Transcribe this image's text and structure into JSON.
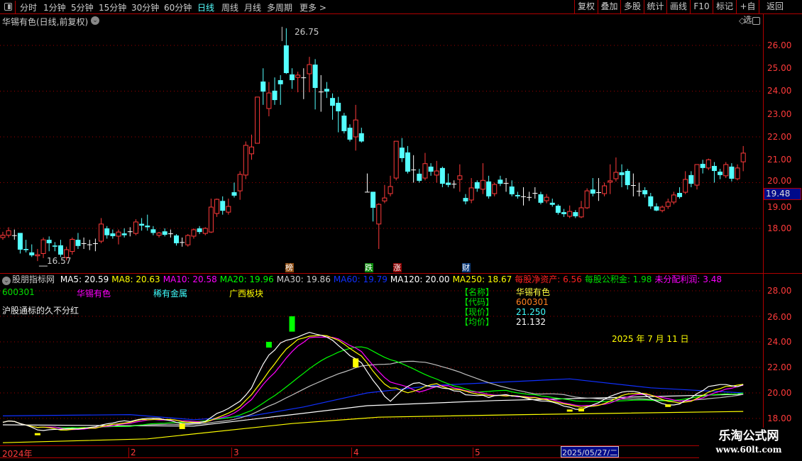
{
  "toolbar": {
    "periods": [
      "分时",
      "1分钟",
      "5分钟",
      "15分钟",
      "30分钟",
      "60分钟",
      "日线",
      "周线",
      "月线",
      "多周期",
      "更多 >"
    ],
    "active": "日线",
    "buttons": [
      "复权",
      "叠加",
      "多股",
      "统计",
      "画线",
      "F10",
      "标记",
      "+自选",
      "返回"
    ]
  },
  "main": {
    "title": "华锡有色(日线,前复权)",
    "high_label": "26.75",
    "low_label": "16.57",
    "current_price": "19.48",
    "price_ticks": [
      "26.00",
      "25.00",
      "24.00",
      "23.00",
      "22.00",
      "21.00",
      "20.00",
      "19.00",
      "18.00"
    ],
    "events": [
      {
        "text": "榜",
        "color": "#8b4a10"
      },
      {
        "text": "跌",
        "color": "#0a8a0a"
      },
      {
        "text": "涨",
        "color": "#8b0000"
      },
      {
        "text": "财",
        "color": "#0a3a7a"
      }
    ],
    "colors": {
      "up": "#ff3a3a",
      "down": "#54ffff",
      "flat": "#ffffff",
      "grid": "#a00000"
    }
  },
  "chart_data": {
    "type": "candlestick",
    "ohlc_order": [
      "open",
      "high",
      "low",
      "close"
    ],
    "ylim": [
      16.5,
      27
    ],
    "candles": [
      [
        17.6,
        17.85,
        17.5,
        17.7
      ],
      [
        17.7,
        18.05,
        17.6,
        17.9
      ],
      [
        17.7,
        17.95,
        17.5,
        17.7
      ],
      [
        17.8,
        17.8,
        16.9,
        17.07
      ],
      [
        17.1,
        17.5,
        16.95,
        17.05
      ],
      [
        16.95,
        17.3,
        16.75,
        16.82
      ],
      [
        16.8,
        17.1,
        16.57,
        16.85
      ],
      [
        16.9,
        17.6,
        16.7,
        17.5
      ],
      [
        17.5,
        17.65,
        17.0,
        17.35
      ],
      [
        17.25,
        17.4,
        17.0,
        17.2
      ],
      [
        17.26,
        17.5,
        16.75,
        16.85
      ],
      [
        16.73,
        17.2,
        16.6,
        17.07
      ],
      [
        16.99,
        17.6,
        16.85,
        17.52
      ],
      [
        17.5,
        17.8,
        17.1,
        17.23
      ],
      [
        17.35,
        17.6,
        17.1,
        17.35
      ],
      [
        17.3,
        17.5,
        17.05,
        17.3
      ],
      [
        17.35,
        17.55,
        17.0,
        17.35
      ],
      [
        17.44,
        18.45,
        17.35,
        18.19
      ],
      [
        18.0,
        18.1,
        17.55,
        17.7
      ],
      [
        17.78,
        17.95,
        17.55,
        17.66
      ],
      [
        17.66,
        17.95,
        17.3,
        17.84
      ],
      [
        17.78,
        18.0,
        17.6,
        17.7
      ],
      [
        17.87,
        18.05,
        17.65,
        17.87
      ],
      [
        17.78,
        18.4,
        17.7,
        18.28
      ],
      [
        18.2,
        18.45,
        17.9,
        18.12
      ],
      [
        18.12,
        18.6,
        17.9,
        18.05
      ],
      [
        17.96,
        18.1,
        17.7,
        17.8
      ],
      [
        17.7,
        17.85,
        17.6,
        17.8
      ],
      [
        17.87,
        18.0,
        17.65,
        17.72
      ],
      [
        17.78,
        17.95,
        17.6,
        17.78
      ],
      [
        17.69,
        17.75,
        17.25,
        17.35
      ],
      [
        17.4,
        17.6,
        17.2,
        17.4
      ],
      [
        17.28,
        17.75,
        17.2,
        17.69
      ],
      [
        17.66,
        18.0,
        17.55,
        17.94
      ],
      [
        18.0,
        18.1,
        17.75,
        17.84
      ],
      [
        17.78,
        18.05,
        17.7,
        18.0
      ],
      [
        17.84,
        19.3,
        17.8,
        18.93
      ],
      [
        18.65,
        19.3,
        18.5,
        19.27
      ],
      [
        19.2,
        19.4,
        18.6,
        18.77
      ],
      [
        18.71,
        19.3,
        18.6,
        18.96
      ],
      [
        19.58,
        20.0,
        19.35,
        19.43
      ],
      [
        19.64,
        20.5,
        19.25,
        20.36
      ],
      [
        20.33,
        21.8,
        20.15,
        21.63
      ],
      [
        21.26,
        22.1,
        21.0,
        21.56
      ],
      [
        21.72,
        23.74,
        21.72,
        23.74
      ],
      [
        24.42,
        25.0,
        23.4,
        23.98
      ],
      [
        23.24,
        24.4,
        22.9,
        23.92
      ],
      [
        24.02,
        24.6,
        23.4,
        23.61
      ],
      [
        24.48,
        24.7,
        23.4,
        24.3
      ],
      [
        26.0,
        26.75,
        24.75,
        24.79
      ],
      [
        24.73,
        25.0,
        24.1,
        24.48
      ],
      [
        24.6,
        24.85,
        23.95,
        24.7
      ],
      [
        24.6,
        25.0,
        23.65,
        24.6
      ],
      [
        24.76,
        25.5,
        23.95,
        25.16
      ],
      [
        25.16,
        25.4,
        23.2,
        24.14
      ],
      [
        23.98,
        24.7,
        23.1,
        23.98
      ],
      [
        24.1,
        24.4,
        23.7,
        23.98
      ],
      [
        23.7,
        23.9,
        22.75,
        23.36
      ],
      [
        23.49,
        23.75,
        22.2,
        23.12
      ],
      [
        22.93,
        23.05,
        22.15,
        22.25
      ],
      [
        22.4,
        22.55,
        21.8,
        21.88
      ],
      [
        22.0,
        23.4,
        21.4,
        22.74
      ],
      [
        22.16,
        22.4,
        21.75,
        21.8
      ],
      [
        19.6,
        20.4,
        19.6,
        19.6
      ],
      [
        19.6,
        19.6,
        18.3,
        18.9
      ],
      [
        18.19,
        19.1,
        17.1,
        19.05
      ],
      [
        19.2,
        19.9,
        19.1,
        19.33
      ],
      [
        19.52,
        20.3,
        19.4,
        19.83
      ],
      [
        20.2,
        21.81,
        20.1,
        21.81
      ],
      [
        21.53,
        21.95,
        20.9,
        21.07
      ],
      [
        21.32,
        21.6,
        20.4,
        20.48
      ],
      [
        20.57,
        21.2,
        20.0,
        20.57
      ],
      [
        20.39,
        20.6,
        20.0,
        20.08
      ],
      [
        20.2,
        21.3,
        20.1,
        20.83
      ],
      [
        20.7,
        20.85,
        20.3,
        20.48
      ],
      [
        20.33,
        20.95,
        20.0,
        20.51
      ],
      [
        20.64,
        20.7,
        19.8,
        19.95
      ],
      [
        20.0,
        20.4,
        19.8,
        19.9
      ],
      [
        19.95,
        20.1,
        19.75,
        19.95
      ],
      [
        20.14,
        20.8,
        19.6,
        20.3
      ],
      [
        19.33,
        19.5,
        19.05,
        19.18
      ],
      [
        19.24,
        20.2,
        19.1,
        19.77
      ],
      [
        20.02,
        20.1,
        19.6,
        19.74
      ],
      [
        19.71,
        20.85,
        19.5,
        20.1
      ],
      [
        20.05,
        20.3,
        19.3,
        19.4
      ],
      [
        19.52,
        20.0,
        19.4,
        19.92
      ],
      [
        20.13,
        20.3,
        19.85,
        19.95
      ],
      [
        19.98,
        20.2,
        19.6,
        19.98
      ],
      [
        19.83,
        20.1,
        19.4,
        19.49
      ],
      [
        19.46,
        19.6,
        19.3,
        19.4
      ],
      [
        19.4,
        19.8,
        19.0,
        19.4
      ],
      [
        19.37,
        19.6,
        19.2,
        19.37
      ],
      [
        19.55,
        19.8,
        19.3,
        19.55
      ],
      [
        19.49,
        19.6,
        19.05,
        19.12
      ],
      [
        19.21,
        19.5,
        19.1,
        19.36
      ],
      [
        19.12,
        19.3,
        18.95,
        19.03
      ],
      [
        18.99,
        19.05,
        18.6,
        18.68
      ],
      [
        18.71,
        18.85,
        18.5,
        18.62
      ],
      [
        18.53,
        19.0,
        18.45,
        18.74
      ],
      [
        18.71,
        18.8,
        18.45,
        18.53
      ],
      [
        18.5,
        19.2,
        18.45,
        18.9
      ],
      [
        18.9,
        19.75,
        18.85,
        19.64
      ],
      [
        19.7,
        20.2,
        19.4,
        19.52
      ],
      [
        19.58,
        20.2,
        19.2,
        19.58
      ],
      [
        19.52,
        20.0,
        19.4,
        19.86
      ],
      [
        20.02,
        20.8,
        19.5,
        20.08
      ],
      [
        20.17,
        21.1,
        20.05,
        20.45
      ],
      [
        20.45,
        20.8,
        19.8,
        20.33
      ],
      [
        20.51,
        20.6,
        19.7,
        19.89
      ],
      [
        19.89,
        20.4,
        19.4,
        19.89
      ],
      [
        19.64,
        20.0,
        19.4,
        19.64
      ],
      [
        19.67,
        19.8,
        19.35,
        19.49
      ],
      [
        19.4,
        19.55,
        18.85,
        18.96
      ],
      [
        18.96,
        19.1,
        18.75,
        18.78
      ],
      [
        18.78,
        19.0,
        18.7,
        18.93
      ],
      [
        18.96,
        19.3,
        18.85,
        19.15
      ],
      [
        19.15,
        19.6,
        19.05,
        19.46
      ],
      [
        19.55,
        19.8,
        19.3,
        19.37
      ],
      [
        19.58,
        20.5,
        19.5,
        20.14
      ],
      [
        20.33,
        20.5,
        19.8,
        19.95
      ],
      [
        19.89,
        20.79,
        19.7,
        20.79
      ],
      [
        20.82,
        21.0,
        20.4,
        20.64
      ],
      [
        20.64,
        21.05,
        20.55,
        21.0
      ],
      [
        20.73,
        20.9,
        20.0,
        20.51
      ],
      [
        20.48,
        20.6,
        20.15,
        20.33
      ],
      [
        20.3,
        20.9,
        20.2,
        20.79
      ],
      [
        20.7,
        20.85,
        20.05,
        20.17
      ],
      [
        20.17,
        20.8,
        20.1,
        20.64
      ],
      [
        20.91,
        21.6,
        20.5,
        21.29
      ]
    ],
    "overlay_series": [
      {
        "name": "MA60",
        "color": "#1030ff",
        "points": [
          [
            0,
            18.2
          ],
          [
            22,
            18.3
          ],
          [
            33,
            17.9
          ],
          [
            43,
            18.2
          ],
          [
            52,
            18.9
          ],
          [
            63,
            20.0
          ],
          [
            75,
            20.6
          ],
          [
            98,
            21.1
          ],
          [
            112,
            20.4
          ],
          [
            128,
            20.0
          ]
        ]
      },
      {
        "name": "MA120",
        "color": "#ffffff",
        "points": [
          [
            0,
            17.5
          ],
          [
            33,
            17.4
          ],
          [
            50,
            18.3
          ],
          [
            63,
            19.0
          ],
          [
            85,
            19.4
          ],
          [
            128,
            19.9
          ]
        ]
      },
      {
        "name": "MA250",
        "color": "#ffff00",
        "points": [
          [
            0,
            16.1
          ],
          [
            25,
            16.4
          ],
          [
            50,
            17.6
          ],
          [
            65,
            18.1
          ],
          [
            90,
            18.3
          ],
          [
            128,
            18.55
          ]
        ]
      }
    ],
    "computed_ma": [
      {
        "name": "MA5",
        "period": 5,
        "color": "#ffffff"
      },
      {
        "name": "MA8",
        "period": 8,
        "color": "#ffff00"
      },
      {
        "name": "MA10",
        "period": 10,
        "color": "#ff00ff"
      },
      {
        "name": "MA20",
        "period": 20,
        "color": "#00ff00"
      },
      {
        "name": "MA30",
        "period": 30,
        "color": "#c0c0c0"
      }
    ],
    "signals": [
      {
        "i": 50,
        "from": 24.8,
        "to": 26.0,
        "color": "#00ff00"
      },
      {
        "i": 46,
        "from": 23.55,
        "to": 24.0,
        "color": "#00ff00"
      },
      {
        "i": 61,
        "from": 22.0,
        "to": 22.7,
        "color": "#ffff00"
      },
      {
        "i": 31,
        "from": 17.17,
        "to": 17.6,
        "color": "#ffff00"
      },
      {
        "i": 6,
        "from": 16.7,
        "to": 16.85,
        "color": "#ffff00"
      },
      {
        "i": 98,
        "from": 18.55,
        "to": 18.7,
        "color": "#ffff00"
      },
      {
        "i": 100,
        "from": 18.55,
        "to": 18.8,
        "color": "#ffff00"
      },
      {
        "i": 115,
        "from": 18.9,
        "to": 19.1,
        "color": "#ffff00"
      }
    ]
  },
  "indicator": {
    "name": "股朋指标网",
    "legend": [
      {
        "label": "MA5: 20.59",
        "color": "#ffffff"
      },
      {
        "label": "MA8: 20.63",
        "color": "#ffff00"
      },
      {
        "label": "MA10: 20.58",
        "color": "#ff00ff"
      },
      {
        "label": "MA20: 19.96",
        "color": "#00ff00"
      },
      {
        "label": "MA30: 19.86",
        "color": "#c0c0c0"
      },
      {
        "label": "MA60: 19.79",
        "color": "#1030ff"
      },
      {
        "label": "MA120: 20.00",
        "color": "#ffffff"
      },
      {
        "label": "MA250: 18.67",
        "color": "#ffff00"
      },
      {
        "label": "每股净资产: 6.56",
        "color": "#ff2020"
      },
      {
        "label": "每股公积金: 1.98",
        "color": "#00e000"
      },
      {
        "label": "未分配利润: 3.48",
        "color": "#ff00ff"
      }
    ],
    "code": "600301",
    "stock_name": "华锡有色",
    "industry": "稀有金属",
    "region": "广西板块",
    "note": "沪股通标的久不分红",
    "info": [
      {
        "key": "【名称】",
        "value": "华锡有色",
        "color": "#ffff40"
      },
      {
        "key": "【代码】",
        "value": "600301",
        "color": "#ff8020"
      },
      {
        "key": "【现价】",
        "value": "21.250",
        "color": "#40ffff"
      },
      {
        "key": "【均价】",
        "value": "21.132",
        "color": "#ffffff"
      }
    ],
    "date_text": "2025 年 7 月 11 日",
    "price_ticks": [
      "28.00",
      "26.00",
      "24.00",
      "22.00",
      "20.00",
      "18.00"
    ]
  },
  "date_axis": {
    "labels": [
      "2024年",
      "2",
      "3",
      "4",
      "5"
    ],
    "cursor_date": "2025/05/27/二"
  },
  "watermark": {
    "title": "乐淘公式网",
    "url": "www.60lt.com"
  }
}
